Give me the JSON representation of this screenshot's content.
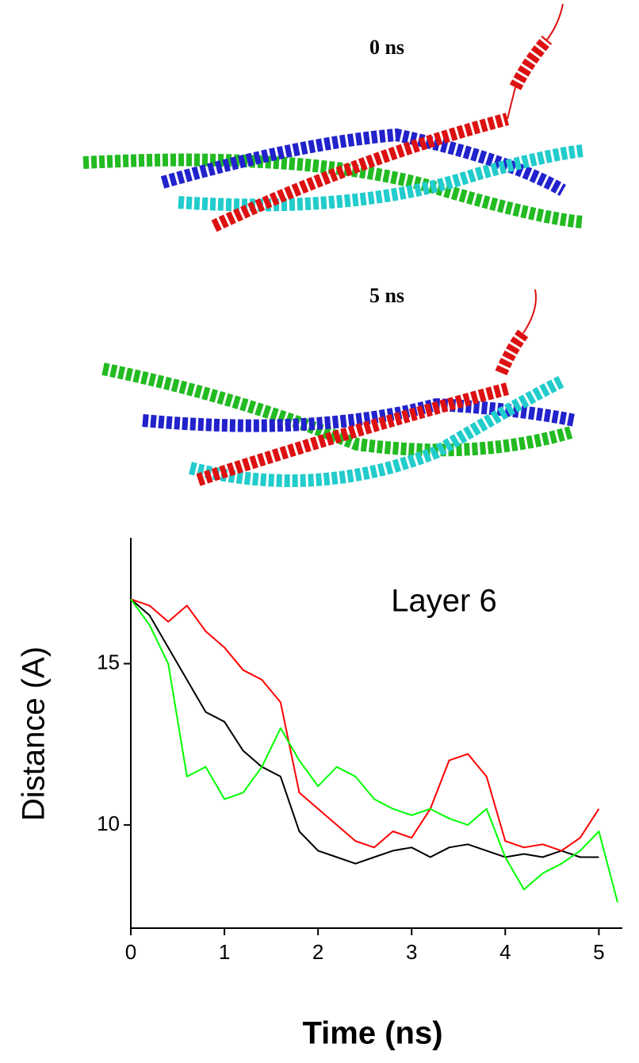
{
  "panels": [
    {
      "label": "0 ns"
    },
    {
      "label": "5 ns"
    }
  ],
  "chart_data": {
    "type": "line",
    "annotation": "Layer 6",
    "x_label": "Time (ns)",
    "y_label": "Distance (A)",
    "x": [
      0,
      0.2,
      0.4,
      0.6,
      0.8,
      1.0,
      1.2,
      1.4,
      1.6,
      1.8,
      2.0,
      2.2,
      2.4,
      2.6,
      2.8,
      3.0,
      3.2,
      3.4,
      3.6,
      3.8,
      4.0,
      4.2,
      4.4,
      4.6,
      4.8,
      5.0,
      5.2
    ],
    "series": [
      {
        "color": "#000000",
        "values": [
          17,
          16.5,
          15.5,
          14.5,
          13.5,
          13.2,
          12.3,
          11.8,
          11.5,
          9.8,
          9.2,
          9.0,
          8.8,
          9.0,
          9.2,
          9.3,
          9.0,
          9.3,
          9.4,
          9.2,
          9.0,
          9.1,
          9.0,
          9.2,
          9.0,
          9.0,
          null
        ]
      },
      {
        "color": "#ff0000",
        "values": [
          17,
          16.8,
          16.3,
          16.8,
          16.0,
          15.5,
          14.8,
          14.5,
          13.8,
          11.0,
          10.5,
          10.0,
          9.5,
          9.3,
          9.8,
          9.6,
          10.5,
          12.0,
          12.2,
          11.5,
          9.5,
          9.3,
          9.4,
          9.2,
          9.6,
          10.5,
          null
        ]
      },
      {
        "color": "#00ff00",
        "values": [
          17,
          16.2,
          15.0,
          11.5,
          11.8,
          10.8,
          11.0,
          11.8,
          13.0,
          12.0,
          11.2,
          11.8,
          11.5,
          10.8,
          10.5,
          10.3,
          10.5,
          10.2,
          10.0,
          10.5,
          9.0,
          8.0,
          8.5,
          8.8,
          9.2,
          9.8,
          7.6
        ]
      }
    ],
    "xlim": [
      0,
      5.2
    ],
    "xticks": [
      0,
      1,
      2,
      3,
      4,
      5
    ],
    "ylim": [
      6.8,
      18.9
    ],
    "yticks": [
      10,
      15
    ]
  }
}
